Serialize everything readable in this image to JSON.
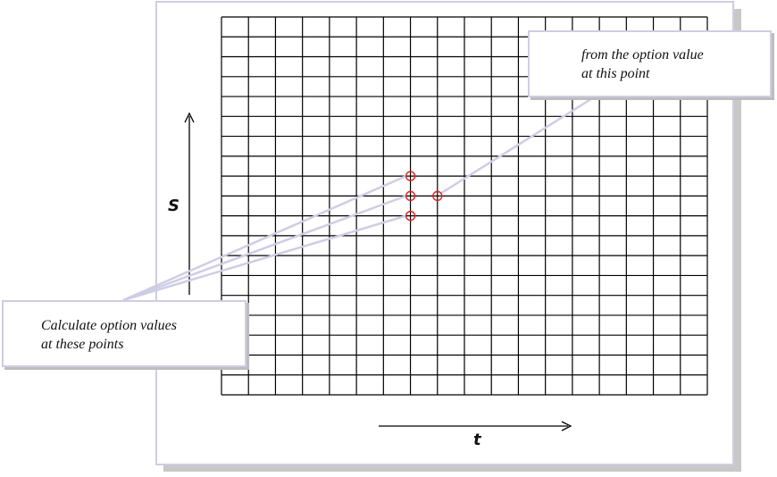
{
  "diagram": {
    "grid": {
      "columns": 18,
      "rows": 19
    },
    "axes": {
      "vertical_label": "S",
      "horizontal_label": "t"
    },
    "highlighted_nodes": [
      {
        "name": "current-point",
        "col": 8,
        "row": 9
      },
      {
        "name": "next-point-up",
        "col": 7,
        "row": 8
      },
      {
        "name": "next-point-mid",
        "col": 7,
        "row": 9
      },
      {
        "name": "next-point-down",
        "col": 7,
        "row": 10
      }
    ],
    "callouts": {
      "from_point": {
        "line1": "from the option value",
        "line2": "at this point"
      },
      "calc_points": {
        "line1": "Calculate option values",
        "line2": "at these points"
      }
    },
    "colors": {
      "grid": "#000000",
      "node": "#e02020",
      "leader": "#cfcde4"
    }
  }
}
